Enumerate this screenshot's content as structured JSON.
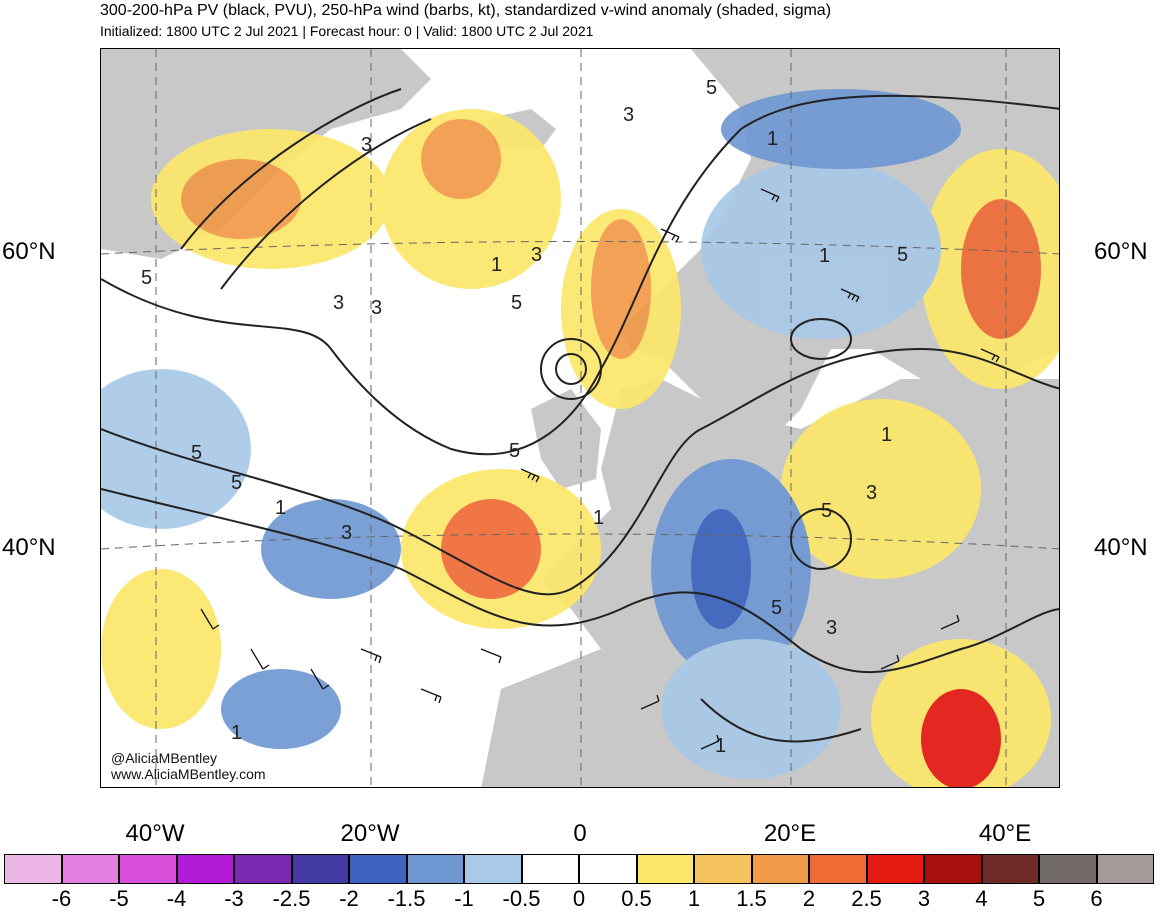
{
  "header": {
    "title": "300-200-hPa PV (black, PVU), 250-hPa wind (barbs, kt), standardized v-wind anomaly (shaded, sigma)",
    "subtitle": "Initialized: 1800 UTC 2 Jul 2021 | Forecast hour: 0 | Valid: 1800 UTC 2 Jul 2021"
  },
  "map": {
    "lat_labels_left": [
      "60°N",
      "40°N"
    ],
    "lat_labels_right": [
      "60°N",
      "40°N"
    ],
    "lon_labels": [
      "40°W",
      "20°W",
      "0",
      "20°E",
      "40°E"
    ],
    "contour_labels": [
      "5",
      "3",
      "5",
      "3",
      "1",
      "3",
      "1",
      "5",
      "1",
      "3",
      "5",
      "5",
      "1",
      "5",
      "3",
      "1",
      "3",
      "5",
      "5",
      "3",
      "1",
      "1",
      "3",
      "5",
      "1"
    ],
    "credit": [
      "@AliciaMBentley",
      "www.AliciaMBentley.com"
    ],
    "colors": {
      "land": "#c8c8c8",
      "contour": "#222222",
      "grid": "#666666"
    }
  },
  "colorbar": {
    "colors": [
      "#ecb7e6",
      "#e57fe2",
      "#da4fd9",
      "#b21ad3",
      "#7a28b4",
      "#433aa4",
      "#3c63bd",
      "#6f98d3",
      "#a8c9e7",
      "#ffffff",
      "#ffffff",
      "#fbe76a",
      "#f4c35e",
      "#f19a48",
      "#ef6b36",
      "#e51b12",
      "#a5100e",
      "#6e2a27",
      "#726b69",
      "#a59a99"
    ],
    "labels": [
      "-6",
      "-5",
      "-4",
      "-3",
      "-2.5",
      "-2",
      "-1.5",
      "-1",
      "-0.5",
      "0",
      "0.5",
      "1",
      "1.5",
      "2",
      "2.5",
      "3",
      "4",
      "5",
      "6"
    ]
  }
}
